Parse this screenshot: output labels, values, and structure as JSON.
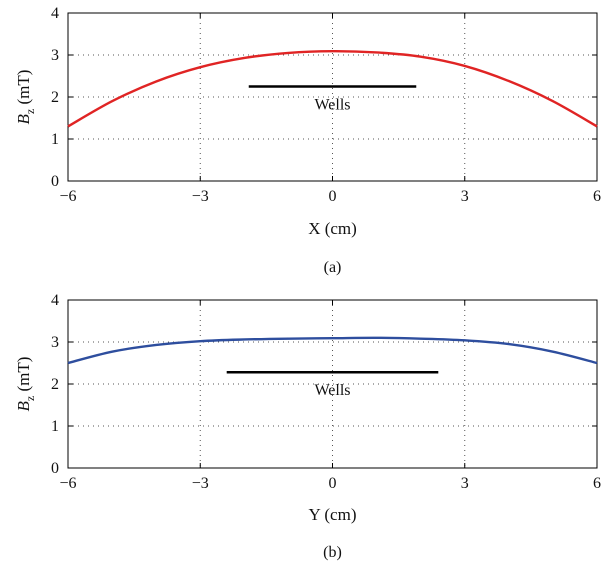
{
  "chart_data": [
    {
      "type": "line",
      "panel_label": "(a)",
      "xlabel": "X (cm)",
      "ylabel_main": "B",
      "ylabel_sub": "z",
      "ylabel_unit": " (mT)",
      "xlim": [
        -6,
        6
      ],
      "ylim": [
        0,
        4
      ],
      "xticks": [
        -6,
        -3,
        0,
        3,
        6
      ],
      "xtick_labels": [
        "−6",
        "−3",
        "0",
        "3",
        "6"
      ],
      "yticks": [
        0,
        1,
        2,
        3,
        4
      ],
      "ytick_labels": [
        "0",
        "1",
        "2",
        "3",
        "4"
      ],
      "grid": true,
      "series": [
        {
          "color": "#e02424",
          "x": [
            -6,
            -5,
            -4,
            -3,
            -2,
            -1,
            0,
            1,
            2,
            3,
            4,
            5,
            6
          ],
          "y": [
            1.3,
            1.9,
            2.37,
            2.71,
            2.93,
            3.05,
            3.09,
            3.06,
            2.96,
            2.74,
            2.38,
            1.9,
            1.3
          ]
        }
      ],
      "annotation": {
        "text": "Wells",
        "x_start": -1.9,
        "x_end": 1.9,
        "y": 2.25,
        "color": "#000000"
      }
    },
    {
      "type": "line",
      "panel_label": "(b)",
      "xlabel": "Y (cm)",
      "ylabel_main": "B",
      "ylabel_sub": "z",
      "ylabel_unit": " (mT)",
      "xlim": [
        -6,
        6
      ],
      "ylim": [
        0,
        4
      ],
      "xticks": [
        -6,
        -3,
        0,
        3,
        6
      ],
      "xtick_labels": [
        "−6",
        "−3",
        "0",
        "3",
        "6"
      ],
      "yticks": [
        0,
        1,
        2,
        3,
        4
      ],
      "ytick_labels": [
        "0",
        "1",
        "2",
        "3",
        "4"
      ],
      "grid": true,
      "series": [
        {
          "color": "#2e4e9e",
          "x": [
            -6,
            -5,
            -4,
            -3,
            -2,
            -1,
            0,
            1,
            2,
            3,
            4,
            5,
            6
          ],
          "y": [
            2.5,
            2.77,
            2.93,
            3.02,
            3.06,
            3.08,
            3.09,
            3.1,
            3.08,
            3.04,
            2.95,
            2.77,
            2.5
          ]
        }
      ],
      "annotation": {
        "text": "Wells",
        "x_start": -2.4,
        "x_end": 2.4,
        "y": 2.28,
        "color": "#000000"
      }
    }
  ]
}
